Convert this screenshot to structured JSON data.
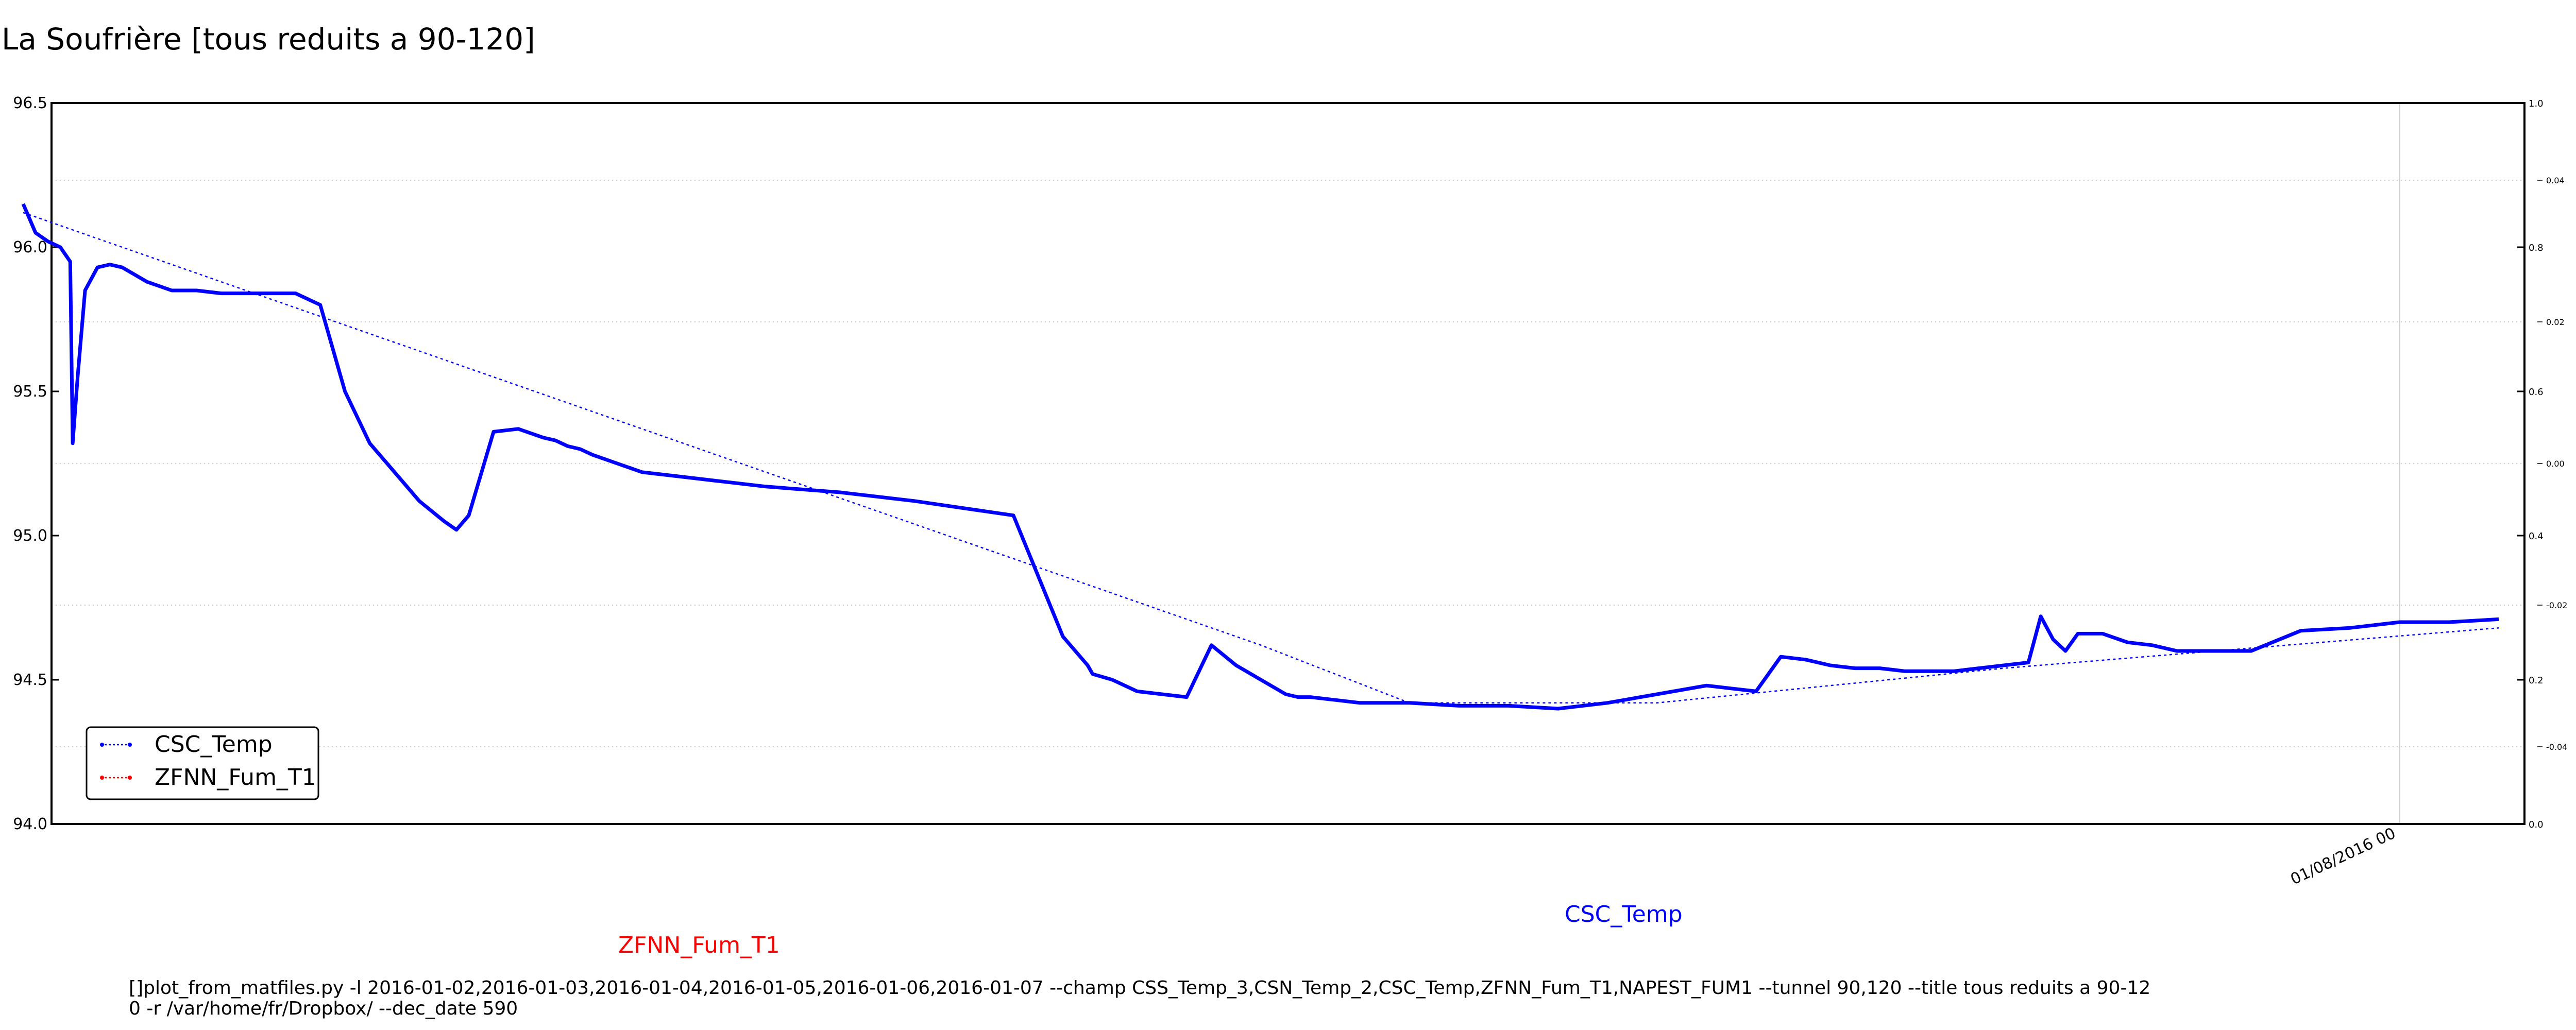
{
  "chart_data": {
    "type": "line",
    "title": "La Soufrière [tous reduits a 90-120]",
    "xlabel": "",
    "ylabel": "",
    "ylim": [
      94.0,
      96.5
    ],
    "y_ticks": [
      "96.5",
      "96.0",
      "95.5",
      "95.0",
      "94.5",
      "94.0"
    ],
    "y2_ticks": [
      "1.0",
      "0.8",
      "0.6",
      "0.4",
      "0.2",
      "0.0"
    ],
    "y3_ticks": [
      "0.04",
      "0.02",
      "0.00",
      "-0.02",
      "-0.04"
    ],
    "x_tick_labels": [
      "01/08/2016 00"
    ],
    "grid": true,
    "legend_position": "lower-left",
    "legend": [
      "CSC_Temp",
      "ZFNN_Fum_T1"
    ],
    "colors": {
      "CSC_Temp": "#0000ff",
      "ZFNN_Fum_T1": "#ff0000"
    },
    "series": [
      {
        "name": "CSC_Temp",
        "x": [
          0.0,
          0.005,
          0.01,
          0.015,
          0.019,
          0.02,
          0.022,
          0.025,
          0.03,
          0.035,
          0.04,
          0.05,
          0.06,
          0.07,
          0.08,
          0.09,
          0.1,
          0.11,
          0.12,
          0.13,
          0.14,
          0.15,
          0.16,
          0.17,
          0.175,
          0.18,
          0.19,
          0.2,
          0.21,
          0.215,
          0.22,
          0.225,
          0.23,
          0.24,
          0.25,
          0.26,
          0.27,
          0.28,
          0.29,
          0.3,
          0.33,
          0.36,
          0.4,
          0.42,
          0.43,
          0.432,
          0.44,
          0.45,
          0.46,
          0.47,
          0.48,
          0.49,
          0.5,
          0.51,
          0.515,
          0.52,
          0.53,
          0.54,
          0.55,
          0.56,
          0.58,
          0.6,
          0.62,
          0.64,
          0.66,
          0.68,
          0.69,
          0.7,
          0.71,
          0.72,
          0.73,
          0.74,
          0.75,
          0.76,
          0.78,
          0.8,
          0.81,
          0.815,
          0.82,
          0.825,
          0.83,
          0.84,
          0.85,
          0.86,
          0.87,
          0.88,
          0.89,
          0.9,
          0.92,
          0.94,
          0.95,
          0.96,
          0.98,
          1.0
        ],
        "values": [
          96.15,
          96.05,
          96.02,
          96.0,
          95.95,
          95.32,
          95.55,
          95.85,
          95.93,
          95.94,
          95.93,
          95.88,
          95.85,
          95.85,
          95.84,
          95.84,
          95.84,
          95.84,
          95.8,
          95.5,
          95.32,
          95.22,
          95.12,
          95.05,
          95.02,
          95.07,
          95.36,
          95.37,
          95.34,
          95.33,
          95.31,
          95.3,
          95.28,
          95.25,
          95.22,
          95.21,
          95.2,
          95.19,
          95.18,
          95.17,
          95.15,
          95.12,
          95.07,
          94.65,
          94.55,
          94.52,
          94.5,
          94.46,
          94.45,
          94.44,
          94.62,
          94.55,
          94.5,
          94.45,
          94.44,
          94.44,
          94.43,
          94.42,
          94.42,
          94.42,
          94.41,
          94.41,
          94.4,
          94.42,
          94.45,
          94.48,
          94.47,
          94.46,
          94.58,
          94.57,
          94.55,
          94.54,
          94.54,
          94.53,
          94.53,
          94.55,
          94.56,
          94.72,
          94.64,
          94.6,
          94.66,
          94.66,
          94.63,
          94.62,
          94.6,
          94.6,
          94.6,
          94.6,
          94.67,
          94.68,
          94.69,
          94.7,
          94.7,
          94.71
        ]
      },
      {
        "name": "ZFNN_Fum_T1",
        "x": [],
        "values": []
      }
    ],
    "trend_line": {
      "x": [
        0.0,
        0.5,
        0.56,
        0.66,
        0.8,
        1.0
      ],
      "values": [
        96.12,
        94.62,
        94.42,
        94.42,
        94.54,
        94.68
      ]
    },
    "labels_below": {
      "zfnn": "ZFNN_Fum_T1",
      "csc": "CSC_Temp"
    },
    "command_lines": [
      "[]plot_from_matfiles.py -l 2016-01-02,2016-01-03,2016-01-04,2016-01-05,2016-01-06,2016-01-07 --champ CSS_Temp_3,CSN_Temp_2,CSC_Temp,ZFNN_Fum_T1,NAPEST_FUM1 --tunnel 90,120 --title tous reduits a 90-12",
      "0 -r /var/home/fr/Dropbox/ --dec_date 590"
    ]
  }
}
